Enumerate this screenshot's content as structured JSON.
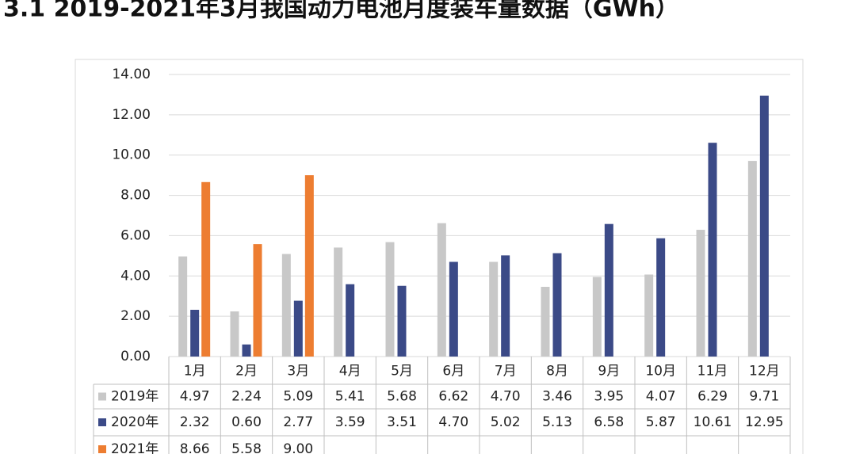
{
  "chart_data": {
    "type": "bar",
    "title": "3.1 2019-2021年3月我国动力电池月度装车量数据（GWh）",
    "categories": [
      "1月",
      "2月",
      "3月",
      "4月",
      "5月",
      "6月",
      "7月",
      "8月",
      "9月",
      "10月",
      "11月",
      "12月"
    ],
    "series": [
      {
        "name": "2019年",
        "color": "#c8c8c8",
        "values": [
          4.97,
          2.24,
          5.09,
          5.41,
          5.68,
          6.62,
          4.7,
          3.46,
          3.95,
          4.07,
          6.29,
          9.71
        ],
        "value_labels": [
          "4.97",
          "2.24",
          "5.09",
          "5.41",
          "5.68",
          "6.62",
          "4.70",
          "3.46",
          "3.95",
          "4.07",
          "6.29",
          "9.71"
        ]
      },
      {
        "name": "2020年",
        "color": "#3b4a87",
        "values": [
          2.32,
          0.6,
          2.77,
          3.59,
          3.51,
          4.7,
          5.02,
          5.13,
          6.58,
          5.87,
          10.61,
          12.95
        ],
        "value_labels": [
          "2.32",
          "0.60",
          "2.77",
          "3.59",
          "3.51",
          "4.70",
          "5.02",
          "5.13",
          "6.58",
          "5.87",
          "10.61",
          "12.95"
        ]
      },
      {
        "name": "2021年",
        "color": "#ed7d31",
        "values": [
          8.66,
          5.58,
          9.0,
          null,
          null,
          null,
          null,
          null,
          null,
          null,
          null,
          null
        ],
        "value_labels": [
          "8.66",
          "5.58",
          "9.00",
          null,
          null,
          null,
          null,
          null,
          null,
          null,
          null,
          null
        ]
      }
    ],
    "ylim": [
      0,
      14
    ],
    "yticks": [
      {
        "value": 0,
        "label": "0.00"
      },
      {
        "value": 2,
        "label": "2.00"
      },
      {
        "value": 4,
        "label": "4.00"
      },
      {
        "value": 6,
        "label": "6.00"
      },
      {
        "value": 8,
        "label": "8.00"
      },
      {
        "value": 10,
        "label": "10.00"
      },
      {
        "value": 12,
        "label": "12.00"
      },
      {
        "value": 14,
        "label": "14.00"
      }
    ],
    "grid": true
  }
}
